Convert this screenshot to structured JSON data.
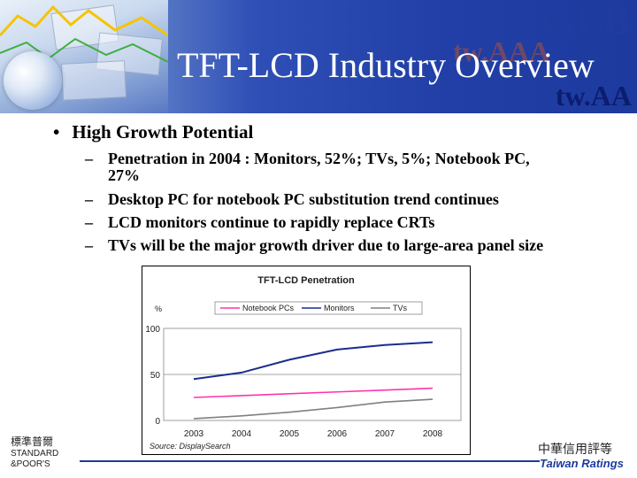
{
  "header": {
    "title": "TFT-LCD Industry Overview",
    "watermark_top": "tw.BB",
    "watermark_mid": "tw.AAA",
    "watermark_bottom": "tw.AA"
  },
  "content": {
    "bullet": "High Growth Potential",
    "bullet_marker": "•",
    "sub_marker": "–",
    "sub_items": [
      "Penetration in 2004 : Monitors, 52%; TVs, 5%; Notebook PC,",
      "27%",
      "Desktop PC for notebook PC substitution trend continues",
      "LCD monitors continue to rapidly replace CRTs",
      "TVs will be the major growth driver due to large-area panel size"
    ]
  },
  "chart_data": {
    "type": "line",
    "title": "TFT-LCD Penetration",
    "ylabel": "%",
    "x": [
      "2003",
      "2004",
      "2005",
      "2006",
      "2007",
      "2008"
    ],
    "ylim": [
      0,
      100
    ],
    "yticks": [
      "0",
      "50",
      "100"
    ],
    "source": "Source: DisplaySearch",
    "series": [
      {
        "name": "Notebook PCs",
        "color": "#ff33aa",
        "values": [
          25,
          27,
          29,
          31,
          33,
          35
        ]
      },
      {
        "name": "Monitors",
        "color": "#1a2d8f",
        "values": [
          45,
          52,
          66,
          77,
          82,
          85
        ]
      },
      {
        "name": "TVs",
        "color": "#808080",
        "values": [
          2,
          5,
          9,
          14,
          20,
          23
        ]
      }
    ]
  },
  "footer": {
    "sp_logo_lines": [
      "標準普爾",
      "STANDARD",
      "&POOR'S"
    ],
    "taiwan_ratings_zh": "中華信用評等",
    "taiwan_ratings_en": "Taiwan Ratings"
  }
}
